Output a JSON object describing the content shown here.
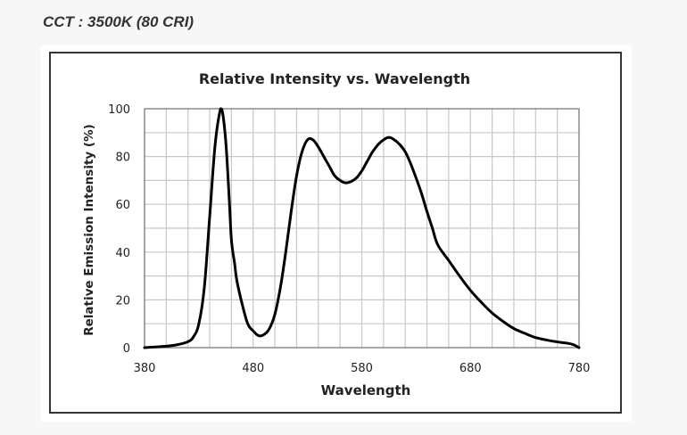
{
  "header": {
    "title": "CCT : 3500K (80 CRI)"
  },
  "chart_data": {
    "type": "line",
    "title": "Relative Intensity vs. Wavelength",
    "xlabel": "Wavelength",
    "ylabel": "Relative Emission Intensity (%)",
    "xlim": [
      380,
      780
    ],
    "ylim": [
      0,
      100
    ],
    "x_ticks": [
      "380",
      "480",
      "580",
      "680",
      "780"
    ],
    "y_ticks": [
      "0",
      "20",
      "40",
      "60",
      "80",
      "100"
    ],
    "grid": true,
    "legend": "none",
    "line_color": "#000000",
    "series": [
      {
        "x": [
          380,
          390,
          400,
          410,
          420,
          425,
          430,
          435,
          440,
          445,
          450,
          452,
          455,
          458,
          460,
          463,
          465,
          470,
          475,
          480,
          485,
          490,
          495,
          500,
          505,
          510,
          515,
          520,
          525,
          530,
          535,
          540,
          545,
          550,
          555,
          560,
          565,
          570,
          575,
          580,
          585,
          590,
          595,
          600,
          605,
          610,
          615,
          620,
          625,
          630,
          635,
          640,
          645,
          650,
          660,
          670,
          680,
          690,
          700,
          710,
          720,
          730,
          740,
          750,
          760,
          770,
          775,
          780
        ],
        "y": [
          0,
          0.3,
          0.6,
          1.2,
          2.5,
          4.5,
          10,
          25,
          55,
          85,
          100,
          98,
          85,
          62,
          45,
          35,
          28,
          18,
          10,
          7,
          5,
          5.5,
          8,
          14,
          25,
          40,
          57,
          72,
          82,
          87,
          87,
          84,
          80,
          76,
          72,
          70,
          69,
          69.5,
          71,
          74,
          78,
          82,
          85,
          87,
          88,
          87,
          85,
          82,
          77,
          71,
          64.5,
          57,
          50,
          43,
          36.5,
          30,
          24,
          19,
          14.5,
          11,
          8,
          6,
          4.2,
          3.2,
          2.4,
          1.8,
          1.2,
          0
        ]
      }
    ]
  }
}
